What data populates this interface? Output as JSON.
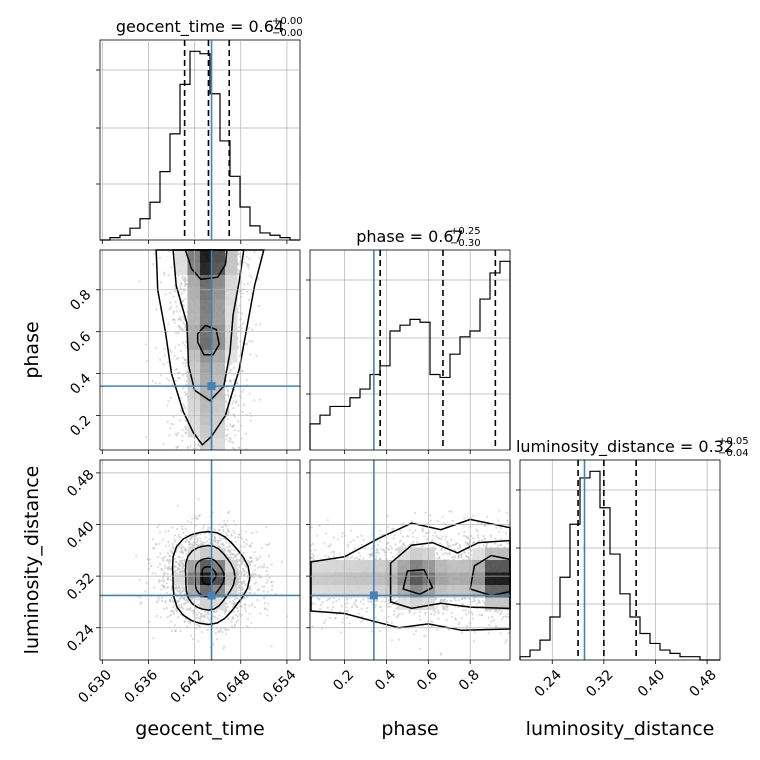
{
  "colors": {
    "truth": "#4682b4",
    "hist": "#000000",
    "grid": "#b0b0b0",
    "scatter": "#bdbdbd"
  },
  "chart_data": {
    "type": "corner",
    "parameters": [
      "geocent_time",
      "phase",
      "luminosity_distance"
    ],
    "truths": {
      "geocent_time": 0.6442,
      "phase": 0.34,
      "luminosity_distance": 0.29
    },
    "titles": [
      {
        "param": "geocent_time",
        "main": "geocent_time = 0.64",
        "sup": "+0.00",
        "sub": "−0.00"
      },
      {
        "param": "phase",
        "main": "phase = 0.67",
        "sup": "+0.25",
        "sub": "−0.30"
      },
      {
        "param": "luminosity_distance",
        "main": "luminosity_distance = 0.32",
        "sup": "+0.05",
        "sub": "−0.04"
      }
    ],
    "axes": {
      "geocent_time": {
        "label": "geocent_time",
        "range": [
          0.6297,
          0.6557
        ],
        "ticks": [
          0.63,
          0.636,
          0.642,
          0.648,
          0.654
        ],
        "tick_labels": [
          "0.630",
          "0.636",
          "0.642",
          "0.648",
          "0.654"
        ]
      },
      "phase": {
        "label": "phase",
        "range": [
          0.035,
          0.99
        ],
        "ticks": [
          0.2,
          0.4,
          0.6,
          0.8
        ],
        "tick_labels": [
          "0.2",
          "0.4",
          "0.6",
          "0.8"
        ]
      },
      "luminosity_distance": {
        "label": "luminosity_distance",
        "range": [
          0.19,
          0.5
        ],
        "ticks": [
          0.24,
          0.32,
          0.4,
          0.48
        ],
        "tick_labels": [
          "0.24",
          "0.32",
          "0.40",
          "0.48"
        ]
      }
    },
    "histograms": [
      {
        "param": "geocent_time",
        "bins": 20,
        "counts": [
          0,
          1,
          2,
          5,
          9,
          16,
          29,
          45,
          66,
          80,
          79,
          62,
          42,
          27,
          14,
          6,
          3,
          2,
          1,
          0
        ],
        "quantiles": [
          0.6407,
          0.6438,
          0.6465
        ]
      },
      {
        "param": "phase",
        "bins": 20,
        "counts": [
          9,
          12,
          15,
          15,
          18,
          21,
          26,
          29,
          41,
          43,
          45,
          44,
          26,
          25,
          33,
          39,
          41,
          52,
          61,
          65
        ],
        "quantiles": [
          0.37,
          0.67,
          0.92
        ]
      },
      {
        "param": "luminosity_distance",
        "bins": 20,
        "counts": [
          1,
          3,
          6,
          13,
          25,
          41,
          55,
          57,
          46,
          32,
          20,
          13,
          8,
          5,
          3,
          2,
          1,
          1,
          0,
          0
        ],
        "quantiles": [
          0.28,
          0.32,
          0.37
        ]
      }
    ],
    "pairs": [
      {
        "x": "geocent_time",
        "y": "phase"
      },
      {
        "x": "geocent_time",
        "y": "luminosity_distance"
      },
      {
        "x": "phase",
        "y": "luminosity_distance"
      }
    ],
    "grid": true,
    "legend": "none"
  }
}
